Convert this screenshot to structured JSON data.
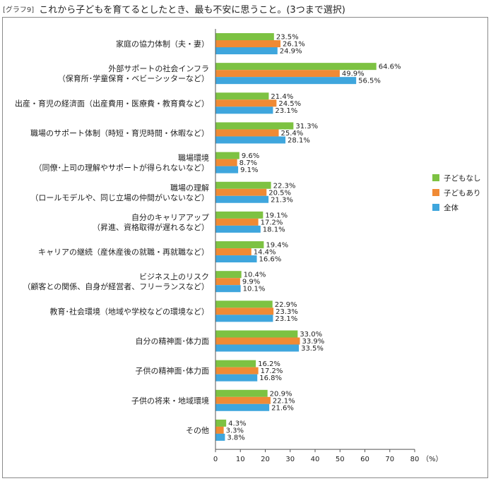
{
  "header": {
    "tag": "[グラフ9]",
    "title": "これから子どもを育てるとしたとき、最も不安に思うこと。(3つまで選択)"
  },
  "chart_data": {
    "type": "bar",
    "orientation": "horizontal",
    "categories": [
      [
        "家庭の協力体制（夫・妻）"
      ],
      [
        "外部サポートの社会インフラ",
        "（保育所･学童保育・ベビーシッターなど）"
      ],
      [
        "出産・育児の経済面（出産費用・医療費・教育費など）"
      ],
      [
        "職場のサポート体制（時短・育児時間・休暇など）"
      ],
      [
        "職場環境",
        "（同僚･上司の理解やサポートが得られないなど）"
      ],
      [
        "職場の理解",
        "（ロールモデルや、同じ立場の仲間がいないなど）"
      ],
      [
        "自分のキャリアアップ",
        "（昇進、資格取得が遅れるなど）"
      ],
      [
        "キャリアの継続（産休産後の就職・再就職など）"
      ],
      [
        "ビジネス上のリスク",
        "（顧客との関係、自身が経営者、フリーランスなど）"
      ],
      [
        "教育･社会環境（地域や学校などの環境など）"
      ],
      [
        "自分の精神面･体力面"
      ],
      [
        "子供の精神面･体力面"
      ],
      [
        "子供の将来・地域環境"
      ],
      [
        "その他"
      ]
    ],
    "series": [
      {
        "name": "子どもなし",
        "color": "#7dc242",
        "values": [
          23.5,
          64.6,
          21.4,
          31.3,
          9.6,
          22.3,
          19.1,
          19.4,
          10.4,
          22.9,
          33.0,
          16.2,
          20.9,
          4.3
        ]
      },
      {
        "name": "子どもあり",
        "color": "#f08a34",
        "values": [
          26.1,
          49.9,
          24.5,
          25.4,
          8.7,
          20.5,
          17.2,
          14.4,
          9.9,
          23.3,
          33.9,
          17.2,
          22.1,
          3.3
        ]
      },
      {
        "name": "全体",
        "color": "#3fa6dd",
        "values": [
          24.9,
          56.5,
          23.1,
          28.1,
          9.1,
          21.3,
          18.1,
          16.6,
          10.1,
          23.1,
          33.5,
          16.8,
          21.6,
          3.8
        ]
      }
    ],
    "value_labels": [
      [
        "23.5%",
        "64.6%",
        "21.4%",
        "31.3%",
        "9.6%",
        "22.3%",
        "19.1%",
        "19.4%",
        "10.4%",
        "22.9%",
        "33.0%",
        "16.2%",
        "20.9%",
        "4.3%"
      ],
      [
        "26.1%",
        "49.9%",
        "24.5%",
        "25.4%",
        "8.7%",
        "20.5%",
        "17.2%",
        "14.4%",
        "9.9%",
        "23.3%",
        "33.9%",
        "17.2%",
        "22.1%",
        "3.3%"
      ],
      [
        "24.9%",
        "56.5%",
        "23.1%",
        "28.1%",
        "9.1%",
        "21.3%",
        "18.1%",
        "16.6%",
        "10.1%",
        "23.1%",
        "33.5%",
        "16.8%",
        "21.6%",
        "3.8%"
      ]
    ],
    "xlim": [
      0,
      80
    ],
    "xticks": [
      0,
      10,
      20,
      30,
      40,
      50,
      60,
      70,
      80
    ],
    "xunit": "（%）",
    "grid": false,
    "legend_position": "right"
  }
}
